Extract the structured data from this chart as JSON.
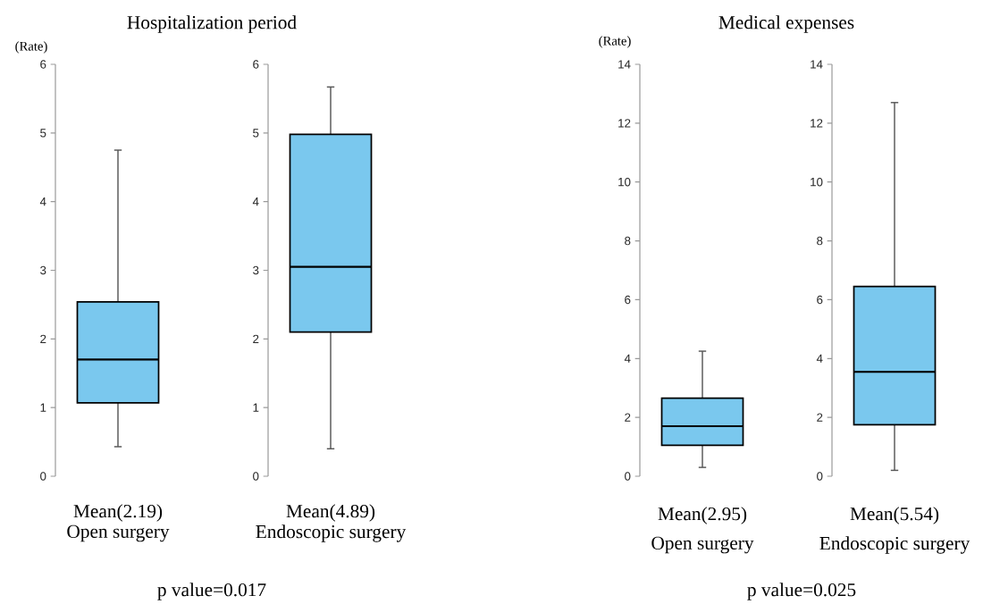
{
  "chart_data": [
    {
      "type": "box",
      "title": "Hospitalization period",
      "ylabel": "(Rate)",
      "categories": [
        "Open surgery"
      ],
      "color": "#7ac8ee",
      "ylim": [
        0,
        6
      ],
      "yticks": [
        0,
        1,
        2,
        3,
        4,
        5,
        6
      ],
      "boxes": [
        {
          "low": 0.43,
          "q1": 1.07,
          "median": 1.7,
          "q3": 2.54,
          "high": 4.75
        }
      ],
      "annotations": [
        "Mean(2.19)",
        "p value=0.017"
      ]
    },
    {
      "type": "box",
      "categories": [
        "Endoscopic surgery"
      ],
      "color": "#7ac8ee",
      "ylim": [
        0,
        6
      ],
      "yticks": [
        0,
        1,
        2,
        3,
        4,
        5,
        6
      ],
      "boxes": [
        {
          "low": 0.4,
          "q1": 2.1,
          "median": 3.05,
          "q3": 4.98,
          "high": 5.67
        }
      ],
      "annotations": [
        "Mean(4.89)"
      ]
    },
    {
      "type": "box",
      "title": "Medical expenses",
      "ylabel": "(Rate)",
      "categories": [
        "Open surgery"
      ],
      "color": "#7ac8ee",
      "ylim": [
        0,
        14
      ],
      "yticks": [
        0,
        2,
        4,
        6,
        8,
        10,
        12,
        14
      ],
      "boxes": [
        {
          "low": 0.3,
          "q1": 1.05,
          "median": 1.7,
          "q3": 2.65,
          "high": 4.25
        }
      ],
      "annotations": [
        "Mean(2.95)",
        "p value=0.025"
      ]
    },
    {
      "type": "box",
      "categories": [
        "Endoscopic surgery"
      ],
      "color": "#7ac8ee",
      "ylim": [
        0,
        14
      ],
      "yticks": [
        0,
        2,
        4,
        6,
        8,
        10,
        12,
        14
      ],
      "boxes": [
        {
          "low": 0.2,
          "q1": 1.75,
          "median": 3.55,
          "q3": 6.45,
          "high": 12.7
        }
      ],
      "annotations": [
        "Mean(5.54)"
      ]
    }
  ]
}
